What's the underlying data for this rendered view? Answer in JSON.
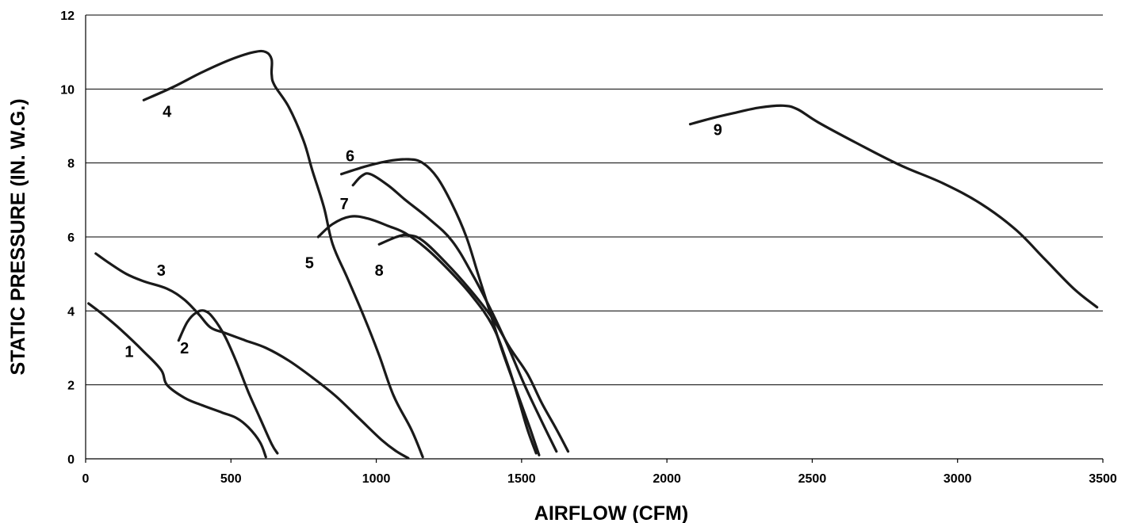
{
  "chart_data": {
    "type": "line",
    "title": "",
    "xlabel": "AIRFLOW (CFM)",
    "ylabel": "STATIC PRESSURE (IN. W.G.)",
    "xlim": [
      0,
      3500
    ],
    "ylim": [
      0,
      12
    ],
    "xticks": [
      "0",
      "500",
      "1000",
      "1500",
      "2000",
      "2500",
      "3000",
      "3500"
    ],
    "yticks": [
      "0",
      "2",
      "4",
      "6",
      "8",
      "10",
      "12"
    ],
    "grid": "horizontal",
    "colors": {
      "curve": "#1a1a1a",
      "grid": "#000000"
    },
    "series": [
      {
        "label": "1",
        "label_at": [
          150,
          2.9
        ],
        "points": [
          [
            10,
            4.2
          ],
          [
            60,
            3.9
          ],
          [
            120,
            3.5
          ],
          [
            200,
            2.9
          ],
          [
            260,
            2.4
          ],
          [
            280,
            2.0
          ],
          [
            340,
            1.65
          ],
          [
            400,
            1.45
          ],
          [
            470,
            1.25
          ],
          [
            520,
            1.1
          ],
          [
            560,
            0.85
          ],
          [
            600,
            0.45
          ],
          [
            620,
            0.05
          ]
        ]
      },
      {
        "label": "2",
        "label_at": [
          340,
          3.0
        ],
        "points": [
          [
            320,
            3.2
          ],
          [
            350,
            3.7
          ],
          [
            380,
            3.95
          ],
          [
            410,
            4.0
          ],
          [
            440,
            3.8
          ],
          [
            480,
            3.3
          ],
          [
            520,
            2.6
          ],
          [
            560,
            1.8
          ],
          [
            600,
            1.1
          ],
          [
            640,
            0.4
          ],
          [
            660,
            0.15
          ]
        ]
      },
      {
        "label": "3",
        "label_at": [
          260,
          5.1
        ],
        "points": [
          [
            35,
            5.55
          ],
          [
            80,
            5.3
          ],
          [
            140,
            5.0
          ],
          [
            200,
            4.8
          ],
          [
            280,
            4.6
          ],
          [
            340,
            4.3
          ],
          [
            390,
            3.9
          ],
          [
            430,
            3.55
          ],
          [
            480,
            3.4
          ],
          [
            550,
            3.2
          ],
          [
            620,
            3.0
          ],
          [
            700,
            2.65
          ],
          [
            780,
            2.2
          ],
          [
            860,
            1.7
          ],
          [
            940,
            1.1
          ],
          [
            1020,
            0.5
          ],
          [
            1070,
            0.2
          ],
          [
            1110,
            0.02
          ]
        ]
      },
      {
        "label": "4",
        "label_at": [
          280,
          9.4
        ],
        "points": [
          [
            200,
            9.7
          ],
          [
            300,
            10.05
          ],
          [
            400,
            10.45
          ],
          [
            500,
            10.8
          ],
          [
            580,
            11.0
          ],
          [
            620,
            11.0
          ],
          [
            640,
            10.8
          ],
          [
            640,
            10.4
          ],
          [
            650,
            10.1
          ],
          [
            700,
            9.5
          ],
          [
            750,
            8.6
          ],
          [
            780,
            7.8
          ],
          [
            820,
            6.8
          ],
          [
            850,
            5.8
          ],
          [
            900,
            4.9
          ],
          [
            960,
            3.8
          ],
          [
            1010,
            2.8
          ],
          [
            1060,
            1.7
          ],
          [
            1120,
            0.8
          ],
          [
            1160,
            0.05
          ]
        ]
      },
      {
        "label": "5",
        "label_at": [
          770,
          5.3
        ],
        "points": [
          [
            800,
            6.0
          ],
          [
            850,
            6.35
          ],
          [
            910,
            6.55
          ],
          [
            970,
            6.5
          ],
          [
            1040,
            6.3
          ],
          [
            1100,
            6.1
          ],
          [
            1170,
            5.7
          ],
          [
            1250,
            5.1
          ],
          [
            1330,
            4.4
          ],
          [
            1400,
            3.6
          ],
          [
            1450,
            2.6
          ],
          [
            1490,
            1.6
          ],
          [
            1520,
            0.8
          ],
          [
            1550,
            0.15
          ]
        ]
      },
      {
        "label": "6",
        "label_at": [
          910,
          8.2
        ],
        "points": [
          [
            880,
            7.7
          ],
          [
            960,
            7.9
          ],
          [
            1040,
            8.05
          ],
          [
            1110,
            8.1
          ],
          [
            1160,
            8.0
          ],
          [
            1210,
            7.6
          ],
          [
            1260,
            6.9
          ],
          [
            1310,
            6.0
          ],
          [
            1350,
            5.0
          ],
          [
            1390,
            4.0
          ],
          [
            1430,
            3.0
          ],
          [
            1480,
            1.9
          ],
          [
            1530,
            0.8
          ],
          [
            1560,
            0.1
          ]
        ]
      },
      {
        "label": "7",
        "label_at": [
          890,
          6.9
        ],
        "points": [
          [
            920,
            7.4
          ],
          [
            950,
            7.65
          ],
          [
            980,
            7.7
          ],
          [
            1040,
            7.4
          ],
          [
            1100,
            7.0
          ],
          [
            1180,
            6.5
          ],
          [
            1260,
            5.9
          ],
          [
            1330,
            5.0
          ],
          [
            1390,
            4.1
          ],
          [
            1450,
            3.1
          ],
          [
            1510,
            2.0
          ],
          [
            1570,
            1.0
          ],
          [
            1620,
            0.2
          ]
        ]
      },
      {
        "label": "8",
        "label_at": [
          1010,
          5.1
        ],
        "points": [
          [
            1010,
            5.8
          ],
          [
            1070,
            6.0
          ],
          [
            1110,
            6.05
          ],
          [
            1160,
            5.9
          ],
          [
            1240,
            5.3
          ],
          [
            1320,
            4.6
          ],
          [
            1400,
            3.8
          ],
          [
            1460,
            3.0
          ],
          [
            1520,
            2.3
          ],
          [
            1570,
            1.5
          ],
          [
            1620,
            0.8
          ],
          [
            1660,
            0.2
          ]
        ]
      },
      {
        "label": "9",
        "label_at": [
          2175,
          8.9
        ],
        "points": [
          [
            2080,
            9.05
          ],
          [
            2150,
            9.2
          ],
          [
            2230,
            9.35
          ],
          [
            2320,
            9.5
          ],
          [
            2400,
            9.55
          ],
          [
            2450,
            9.45
          ],
          [
            2520,
            9.1
          ],
          [
            2650,
            8.55
          ],
          [
            2800,
            7.95
          ],
          [
            2950,
            7.45
          ],
          [
            3080,
            6.9
          ],
          [
            3200,
            6.2
          ],
          [
            3300,
            5.4
          ],
          [
            3400,
            4.6
          ],
          [
            3480,
            4.1
          ]
        ]
      }
    ]
  }
}
